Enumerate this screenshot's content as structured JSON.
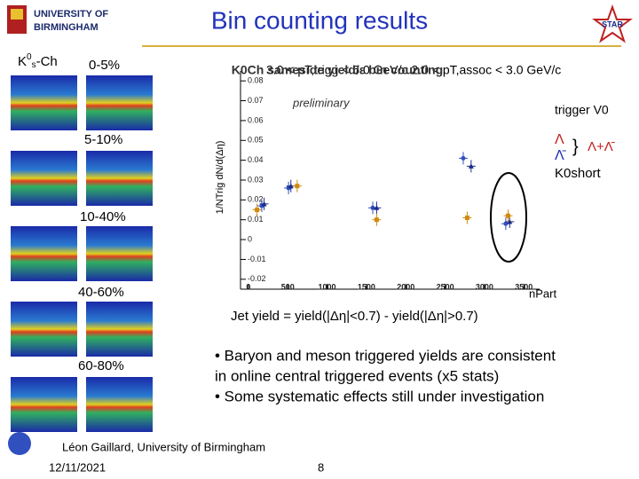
{
  "header": {
    "title": "Bin counting results",
    "logo_line1": "UNIVERSITY OF",
    "logo_line2": "BIRMINGHAM",
    "experiment": "STAR"
  },
  "left_panel": {
    "label": {
      "base": "K",
      "sup": "0",
      "sub": "s",
      "rest": "-Ch"
    },
    "centralities": [
      "0-5%",
      "5-10%",
      "10-40%",
      "40-60%",
      "60-80%"
    ]
  },
  "plot_notes": {
    "kinematics": "3.0 < pT,trigg < 6.0 GeV/c   2.0 < pT,assoc < 3.0 GeV/c",
    "preliminary": "preliminary",
    "trigger": "trigger V0",
    "brace": "}",
    "combined": "Λ+Λ̄",
    "jet_yield": "Jet yield = yield(|Δη|<0.7) - yield(|Δη|>0.7)"
  },
  "chart_data": {
    "type": "scatter",
    "title": "K0Ch sameside yield/ε bin counting",
    "x_label": "nPart",
    "y_label": "1/NTrig dN/d(Δη)",
    "xlim": [
      -100,
      3700
    ],
    "xticks": [
      0,
      500,
      1000,
      1500,
      2000,
      2500,
      3000,
      3500
    ],
    "ylim": [
      -0.025,
      0.085
    ],
    "yticks": [
      -0.02,
      -0.01,
      0,
      0.01,
      0.02,
      0.03,
      0.04,
      0.05,
      0.06,
      0.07,
      0.08
    ],
    "series": [
      {
        "name": "Λ",
        "color": "#c02020",
        "marker_color": "#3050c0",
        "x": [
          170,
          510,
          1580,
          2730,
          3270
        ],
        "values": [
          0.017,
          0.026,
          0.016,
          0.041,
          0.008
        ]
      },
      {
        "name": "Λ̄",
        "color": "#2030b0",
        "marker_color": "#1a2a8a",
        "x": [
          200,
          540,
          1630,
          2830,
          3320
        ],
        "values": [
          0.018,
          0.027,
          0.016,
          0.037,
          0.009
        ]
      },
      {
        "name": "K0short",
        "color": "#000000",
        "marker_color": "#d08a10",
        "x": [
          110,
          620,
          1630,
          2780,
          3300
        ],
        "values": [
          0.015,
          0.027,
          0.01,
          0.011,
          0.012
        ]
      }
    ]
  },
  "bullets": [
    "• Baryon and meson triggered yields are consistent",
    "in online central triggered events (x5 stats)",
    "• Some systematic effects still under investigation"
  ],
  "footer": {
    "author": "Léon Gaillard, University of Birmingham",
    "date": "12/11/2021",
    "page": "8"
  }
}
